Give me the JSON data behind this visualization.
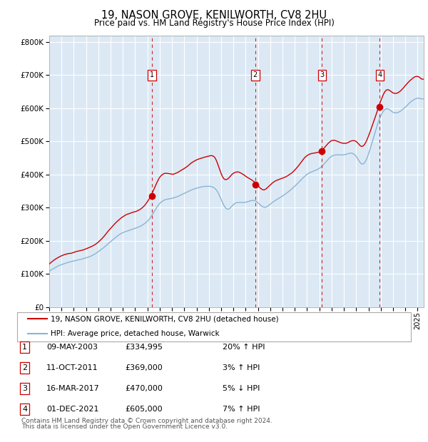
{
  "title": "19, NASON GROVE, KENILWORTH, CV8 2HU",
  "subtitle": "Price paid vs. HM Land Registry's House Price Index (HPI)",
  "ytick_values": [
    0,
    100000,
    200000,
    300000,
    400000,
    500000,
    600000,
    700000,
    800000
  ],
  "ylim": [
    0,
    820000
  ],
  "xlim_start": 1995.0,
  "xlim_end": 2025.5,
  "background_color": "#dce9f5",
  "grid_color": "#ffffff",
  "red_line_color": "#cc0000",
  "blue_line_color": "#8ab4d4",
  "transaction_marker_color": "#cc0000",
  "dashed_line_color": "#cc0000",
  "transactions": [
    {
      "num": 1,
      "date_str": "09-MAY-2003",
      "year": 2003.36,
      "price": 334995,
      "pct": "20%",
      "dir": "↑"
    },
    {
      "num": 2,
      "date_str": "11-OCT-2011",
      "year": 2011.78,
      "price": 369000,
      "pct": "3%",
      "dir": "↑"
    },
    {
      "num": 3,
      "date_str": "16-MAR-2017",
      "year": 2017.21,
      "price": 470000,
      "pct": "5%",
      "dir": "↓"
    },
    {
      "num": 4,
      "date_str": "01-DEC-2021",
      "year": 2021.92,
      "price": 605000,
      "pct": "7%",
      "dir": "↑"
    }
  ],
  "legend_line1": "19, NASON GROVE, KENILWORTH, CV8 2HU (detached house)",
  "legend_line2": "HPI: Average price, detached house, Warwick",
  "footer_line1": "Contains HM Land Registry data © Crown copyright and database right 2024.",
  "footer_line2": "This data is licensed under the Open Government Licence v3.0.",
  "table_entries": [
    {
      "num": "1",
      "date": "09-MAY-2003",
      "price": "£334,995",
      "pct": "20% ↑ HPI"
    },
    {
      "num": "2",
      "date": "11-OCT-2011",
      "price": "£369,000",
      "pct": "3% ↑ HPI"
    },
    {
      "num": "3",
      "date": "16-MAR-2017",
      "price": "£470,000",
      "pct": "5% ↓ HPI"
    },
    {
      "num": "4",
      "date": "01-DEC-2021",
      "price": "£605,000",
      "pct": "7% ↑ HPI"
    }
  ]
}
